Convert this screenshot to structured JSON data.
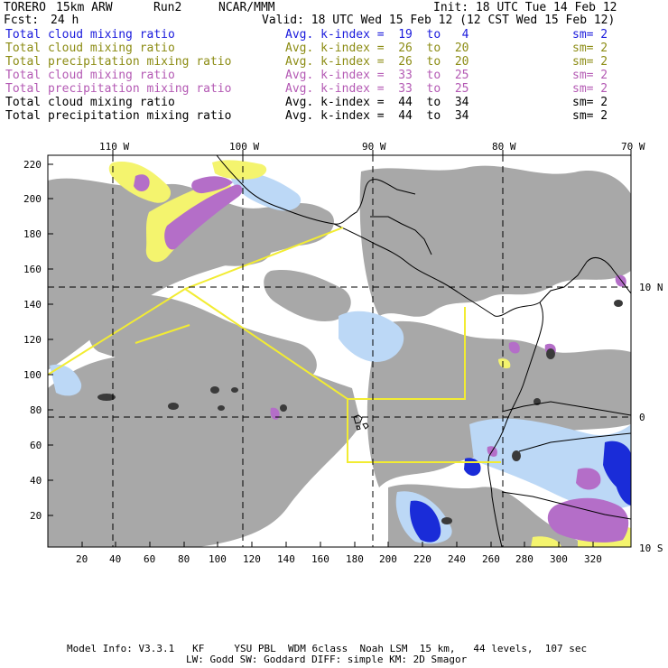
{
  "header": {
    "model": "TORERO",
    "resolution": "15km ARW",
    "run": "Run2",
    "org": "NCAR/MMM",
    "init": "Init: 18 UTC Tue 14 Feb 12",
    "fcst_label": "Fcst:",
    "fcst_value": "24 h",
    "valid": "Valid: 18 UTC Wed 15 Feb 12 (12 CST Wed 15 Feb 12)"
  },
  "legend": [
    {
      "field": "Total cloud mixing ratio",
      "kindex": "Avg. k-index =  19  to   4",
      "sm": "sm= 2",
      "color": "#1a1adc"
    },
    {
      "field": "Total cloud mixing ratio",
      "kindex": "Avg. k-index =  26  to  20",
      "sm": "sm= 2",
      "color": "#8c8c14"
    },
    {
      "field": "Total precipitation mixing ratio",
      "kindex": "Avg. k-index =  26  to  20",
      "sm": "sm= 2",
      "color": "#8c8c14"
    },
    {
      "field": "Total cloud mixing ratio",
      "kindex": "Avg. k-index =  33  to  25",
      "sm": "sm= 2",
      "color": "#b45ab4"
    },
    {
      "field": "Total precipitation mixing ratio",
      "kindex": "Avg. k-index =  33  to  25",
      "sm": "sm= 2",
      "color": "#b45ab4"
    },
    {
      "field": "Total cloud mixing ratio",
      "kindex": "Avg. k-index =  44  to  34",
      "sm": "sm= 2",
      "color": "#000000"
    },
    {
      "field": "Total precipitation mixing ratio",
      "kindex": "Avg. k-index =  44  to  34",
      "sm": "sm= 2",
      "color": "#000000"
    }
  ],
  "map": {
    "lon_labels": [
      "110 W",
      "100 W",
      "90 W",
      "80 W",
      "70 W"
    ],
    "lat_labels": [
      "10 N",
      "0",
      "10 S"
    ],
    "x_ticks": [
      "20",
      "40",
      "60",
      "80",
      "100",
      "120",
      "140",
      "160",
      "180",
      "200",
      "220",
      "240",
      "260",
      "280",
      "300",
      "320"
    ],
    "y_ticks": [
      "220",
      "200",
      "180",
      "160",
      "140",
      "120",
      "100",
      "80",
      "60",
      "40",
      "20"
    ],
    "colors": {
      "cloud_gray": "#a8a8a8",
      "precip_yellow": "#f4f46e",
      "precip_purple": "#b46ec8",
      "cloud_blue_light": "#bcd8f6",
      "cloud_blue_dark": "#1a2cd8",
      "domain_box": "#f2ec32",
      "coast": "#000000",
      "gridline": "#000000"
    }
  },
  "footer": {
    "line1": "Model Info: V3.3.1   KF     YSU PBL  WDM 6class  Noah LSM  15 km,   44 levels,  107 sec",
    "line2": "LW: Godd SW: Goddard DIFF: simple KM: 2D Smagor"
  }
}
